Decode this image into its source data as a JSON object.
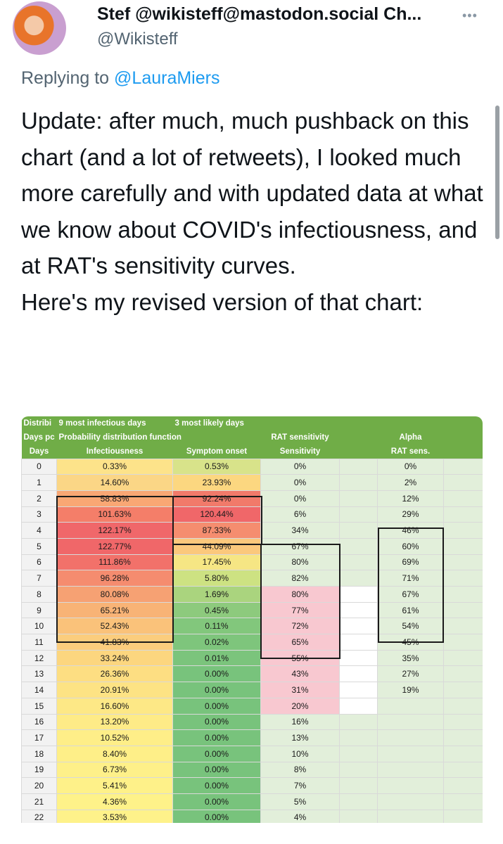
{
  "tweet": {
    "display_name": "Stef @wikisteff@mastodon.social Ch...",
    "handle": "@Wikisteff",
    "more_icon": "ellipsis-icon",
    "replying_prefix": "Replying to",
    "replying_to": "@LauraMiers",
    "paragraph_1": "Update: after much, much pushback on this chart (and a lot of retweets), I looked much more carefully and with updated data at what we know about COVID's infectiousness, and at RAT's sensitivity curves.",
    "paragraph_2": "Here's my revised version of that chart:"
  },
  "sheet": {
    "header_row_1": [
      "Distribi",
      "9 most infectious days",
      "3 most likely days",
      "",
      "",
      "",
      ""
    ],
    "header_row_2": [
      "Days pc",
      "Probability distribution function",
      "",
      "RAT sensitivity",
      "",
      "Alpha",
      ""
    ],
    "header_row_3": [
      "Days",
      "Infectiousness",
      "Symptom onset",
      "Sensitivity",
      "",
      "RAT sens.",
      ""
    ],
    "rows": [
      {
        "day": "0",
        "inf": "0.33%",
        "sym": "0.53%",
        "sens": "0%",
        "alpha": "0%"
      },
      {
        "day": "1",
        "inf": "14.60%",
        "sym": "23.93%",
        "sens": "0%",
        "alpha": "2%"
      },
      {
        "day": "2",
        "inf": "58.83%",
        "sym": "92.24%",
        "sens": "0%",
        "alpha": "12%"
      },
      {
        "day": "3",
        "inf": "101.63%",
        "sym": "120.44%",
        "sens": "6%",
        "alpha": "29%"
      },
      {
        "day": "4",
        "inf": "122.17%",
        "sym": "87.33%",
        "sens": "34%",
        "alpha": "46%"
      },
      {
        "day": "5",
        "inf": "122.77%",
        "sym": "44.09%",
        "sens": "67%",
        "alpha": "60%"
      },
      {
        "day": "6",
        "inf": "111.86%",
        "sym": "17.45%",
        "sens": "80%",
        "alpha": "69%"
      },
      {
        "day": "7",
        "inf": "96.28%",
        "sym": "5.80%",
        "sens": "82%",
        "alpha": "71%"
      },
      {
        "day": "8",
        "inf": "80.08%",
        "sym": "1.69%",
        "sens": "80%",
        "alpha": "67%"
      },
      {
        "day": "9",
        "inf": "65.21%",
        "sym": "0.45%",
        "sens": "77%",
        "alpha": "61%"
      },
      {
        "day": "10",
        "inf": "52.43%",
        "sym": "0.11%",
        "sens": "72%",
        "alpha": "54%"
      },
      {
        "day": "11",
        "inf": "41.83%",
        "sym": "0.02%",
        "sens": "65%",
        "alpha": "45%"
      },
      {
        "day": "12",
        "inf": "33.24%",
        "sym": "0.01%",
        "sens": "55%",
        "alpha": "35%"
      },
      {
        "day": "13",
        "inf": "26.36%",
        "sym": "0.00%",
        "sens": "43%",
        "alpha": "27%"
      },
      {
        "day": "14",
        "inf": "20.91%",
        "sym": "0.00%",
        "sens": "31%",
        "alpha": "19%"
      },
      {
        "day": "15",
        "inf": "16.60%",
        "sym": "0.00%",
        "sens": "20%",
        "alpha": ""
      },
      {
        "day": "16",
        "inf": "13.20%",
        "sym": "0.00%",
        "sens": "16%",
        "alpha": ""
      },
      {
        "day": "17",
        "inf": "10.52%",
        "sym": "0.00%",
        "sens": "13%",
        "alpha": ""
      },
      {
        "day": "18",
        "inf": "8.40%",
        "sym": "0.00%",
        "sens": "10%",
        "alpha": ""
      },
      {
        "day": "19",
        "inf": "6.73%",
        "sym": "0.00%",
        "sens": "8%",
        "alpha": ""
      },
      {
        "day": "20",
        "inf": "5.41%",
        "sym": "0.00%",
        "sens": "7%",
        "alpha": ""
      },
      {
        "day": "21",
        "inf": "4.36%",
        "sym": "0.00%",
        "sens": "5%",
        "alpha": ""
      },
      {
        "day": "22",
        "inf": "3.53%",
        "sym": "0.00%",
        "sens": "4%",
        "alpha": ""
      }
    ],
    "colors": {
      "header_green": "#70ad47",
      "inf_colors": [
        "#fde38a",
        "#fbd686",
        "#f9a774",
        "#f47e69",
        "#f0676a",
        "#f06769",
        "#f2716a",
        "#f58c6f",
        "#f6a173",
        "#f8b376",
        "#fac27a",
        "#fbcd7d",
        "#fcd67f",
        "#fdde82",
        "#fde384",
        "#fde886",
        "#feeb87",
        "#feee88",
        "#feef88",
        "#fef089",
        "#fef189",
        "#fef289",
        "#fef28a"
      ],
      "sym_colors": [
        "#d8e38a",
        "#fcd780",
        "#f17a6a",
        "#f06769",
        "#f58d6f",
        "#fbc87c",
        "#f6e684",
        "#cde282",
        "#aad47e",
        "#8dca7d",
        "#82c77c",
        "#7ec57c",
        "#7bc47c",
        "#78c37c",
        "#78c37c",
        "#78c37c",
        "#78c37c",
        "#78c37c",
        "#78c37c",
        "#78c37c",
        "#78c37c",
        "#78c37c",
        "#78c37c"
      ],
      "sens_pink": "#f8c8d0",
      "sens_green": "#e2efda"
    }
  }
}
